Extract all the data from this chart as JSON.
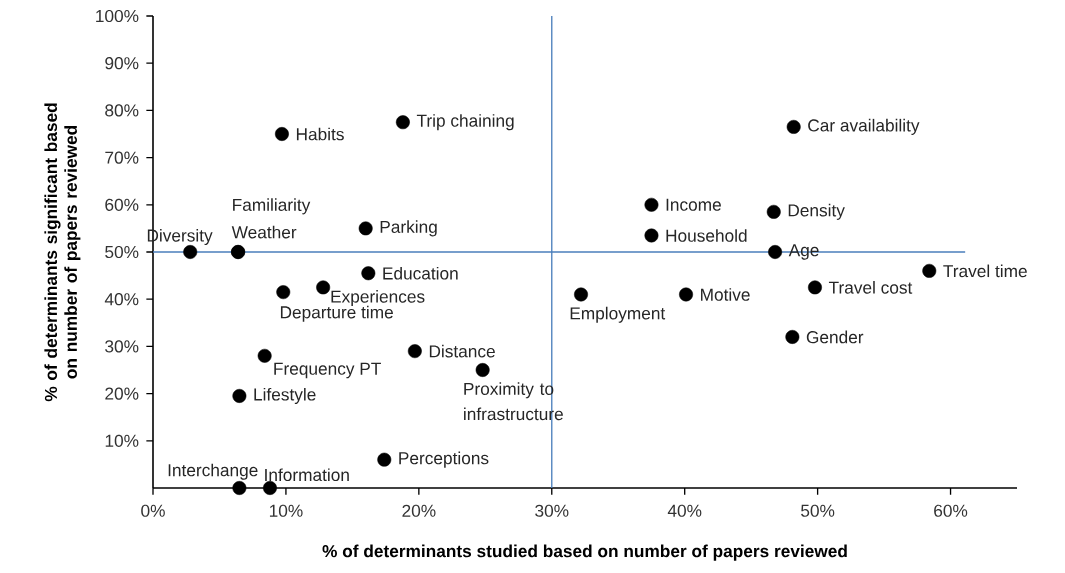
{
  "chart_data": {
    "type": "scatter",
    "xlabel": "% of determinants studied based on number of papers reviewed",
    "ylabel": "% of determinants significant based on number of papers reviewed",
    "xlim": [
      0,
      65
    ],
    "ylim": [
      0,
      100
    ],
    "xticks": [
      {
        "value": 0,
        "label": "0%"
      },
      {
        "value": 10,
        "label": "10%"
      },
      {
        "value": 20,
        "label": "20%"
      },
      {
        "value": 30,
        "label": "30%"
      },
      {
        "value": 40,
        "label": "40%"
      },
      {
        "value": 50,
        "label": "50%"
      },
      {
        "value": 60,
        "label": "60%"
      }
    ],
    "yticks": [
      {
        "value": 10,
        "label": "10%"
      },
      {
        "value": 20,
        "label": "20%"
      },
      {
        "value": 30,
        "label": "30%"
      },
      {
        "value": 40,
        "label": "40%"
      },
      {
        "value": 50,
        "label": "50%"
      },
      {
        "value": 60,
        "label": "60%"
      },
      {
        "value": 70,
        "label": "70%"
      },
      {
        "value": 80,
        "label": "80%"
      },
      {
        "value": 90,
        "label": "90%"
      },
      {
        "value": 100,
        "label": "100%"
      }
    ],
    "series": [
      {
        "color": "#000000",
        "x": [
          9.7,
          18.8,
          48.2,
          6.4,
          6.4,
          2.8,
          16.0,
          37.5,
          37.5,
          46.7,
          46.8,
          58.4,
          16.2,
          12.8,
          9.8,
          49.8,
          40.1,
          32.2,
          48.1,
          19.7,
          8.4,
          24.8,
          6.5,
          17.4,
          6.5,
          8.8
        ],
        "values": [
          75,
          77.5,
          76.5,
          50,
          50,
          50,
          55,
          60,
          53.5,
          58.5,
          50,
          46,
          45.5,
          42.5,
          41.5,
          42.5,
          41,
          41,
          32,
          29,
          28,
          25,
          19.5,
          6,
          0,
          0
        ]
      }
    ],
    "ref_lines": [
      {
        "axis": "x",
        "value": 30,
        "color": "#4a7ebb"
      },
      {
        "axis": "y",
        "value": 50,
        "color": "#4a7ebb"
      }
    ],
    "annotations": [
      {
        "text": "Habits",
        "x": 9.7,
        "y": 75
      },
      {
        "text": "Trip chaining",
        "x": 18.8,
        "y": 77.5
      },
      {
        "text": "Car availability",
        "x": 48.2,
        "y": 76.5
      },
      {
        "text": "Familiarity",
        "x": 6.4,
        "y": 50
      },
      {
        "text": "Weather",
        "x": 6.4,
        "y": 50
      },
      {
        "text": "Diversity",
        "x": 2.8,
        "y": 50
      },
      {
        "text": "Parking",
        "x": 16.0,
        "y": 55
      },
      {
        "text": "Income",
        "x": 37.5,
        "y": 60
      },
      {
        "text": "Household",
        "x": 37.5,
        "y": 53.5
      },
      {
        "text": "Density",
        "x": 46.7,
        "y": 58.5
      },
      {
        "text": "Age",
        "x": 46.8,
        "y": 50
      },
      {
        "text": "Travel time",
        "x": 58.4,
        "y": 46
      },
      {
        "text": "Education",
        "x": 16.2,
        "y": 45.5
      },
      {
        "text": "Experiences",
        "x": 12.8,
        "y": 42.5
      },
      {
        "text": "Departure time",
        "x": 9.8,
        "y": 41.5
      },
      {
        "text": "Travel cost",
        "x": 49.8,
        "y": 42.5
      },
      {
        "text": "Motive",
        "x": 40.1,
        "y": 41
      },
      {
        "text": "Employment",
        "x": 32.2,
        "y": 41
      },
      {
        "text": "Gender",
        "x": 48.1,
        "y": 32
      },
      {
        "text": "Distance",
        "x": 19.7,
        "y": 29
      },
      {
        "text": "Frequency PT",
        "x": 8.4,
        "y": 28
      },
      {
        "text": "Proximity to infrastructure",
        "x": 24.8,
        "y": 25
      },
      {
        "text": "Lifestyle",
        "x": 6.5,
        "y": 19.5
      },
      {
        "text": "Perceptions",
        "x": 17.4,
        "y": 6
      },
      {
        "text": "Interchange",
        "x": 6.5,
        "y": 0
      },
      {
        "text": "Information",
        "x": 8.8,
        "y": 0
      }
    ]
  }
}
